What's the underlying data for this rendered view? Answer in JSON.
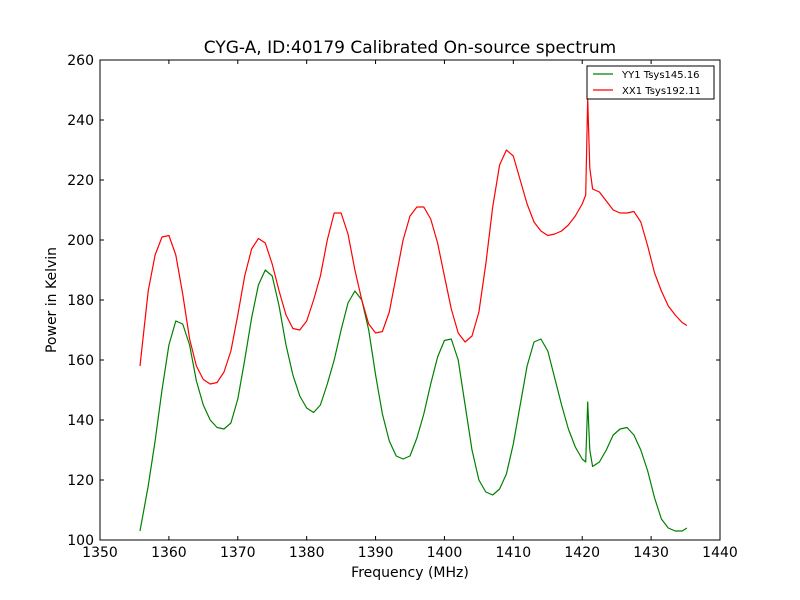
{
  "chart_data": {
    "type": "line",
    "title": "CYG-A, ID:40179 Calibrated On-source spectrum",
    "xlabel": "Frequency (MHz)",
    "ylabel": "Power in Kelvin",
    "xlim": [
      1350,
      1440
    ],
    "ylim": [
      100,
      260
    ],
    "xticks": [
      1350,
      1360,
      1370,
      1380,
      1390,
      1400,
      1410,
      1420,
      1430,
      1440
    ],
    "yticks": [
      100,
      120,
      140,
      160,
      180,
      200,
      220,
      240,
      260
    ],
    "grid": false,
    "legend_position": "top-right",
    "series": [
      {
        "name": "YY1 Tsys145.16",
        "color": "#008000",
        "points": [
          [
            1355.8,
            103
          ],
          [
            1357.0,
            118
          ],
          [
            1358.0,
            133
          ],
          [
            1359.0,
            150
          ],
          [
            1360.0,
            165
          ],
          [
            1361.0,
            173
          ],
          [
            1362.0,
            172
          ],
          [
            1363.0,
            165
          ],
          [
            1364.0,
            153
          ],
          [
            1365.0,
            145
          ],
          [
            1366.0,
            140
          ],
          [
            1367.0,
            137.5
          ],
          [
            1368.0,
            137
          ],
          [
            1369.0,
            139
          ],
          [
            1370.0,
            147
          ],
          [
            1371.0,
            160
          ],
          [
            1372.0,
            174
          ],
          [
            1373.0,
            185
          ],
          [
            1374.0,
            190
          ],
          [
            1375.0,
            188
          ],
          [
            1376.0,
            178
          ],
          [
            1377.0,
            165
          ],
          [
            1378.0,
            155
          ],
          [
            1379.0,
            148
          ],
          [
            1380.0,
            144
          ],
          [
            1381.0,
            142.5
          ],
          [
            1382.0,
            145
          ],
          [
            1383.0,
            152
          ],
          [
            1384.0,
            160
          ],
          [
            1385.0,
            170
          ],
          [
            1386.0,
            179
          ],
          [
            1387.0,
            183
          ],
          [
            1388.0,
            180
          ],
          [
            1389.0,
            170
          ],
          [
            1390.0,
            155
          ],
          [
            1391.0,
            142
          ],
          [
            1392.0,
            133
          ],
          [
            1393.0,
            128
          ],
          [
            1394.0,
            127
          ],
          [
            1395.0,
            128
          ],
          [
            1396.0,
            134
          ],
          [
            1397.0,
            142
          ],
          [
            1398.0,
            152
          ],
          [
            1399.0,
            161
          ],
          [
            1400.0,
            166.5
          ],
          [
            1401.0,
            167
          ],
          [
            1402.0,
            160
          ],
          [
            1403.0,
            145
          ],
          [
            1404.0,
            130
          ],
          [
            1405.0,
            120
          ],
          [
            1406.0,
            116
          ],
          [
            1407.0,
            115
          ],
          [
            1408.0,
            117
          ],
          [
            1409.0,
            122
          ],
          [
            1410.0,
            132
          ],
          [
            1411.0,
            145
          ],
          [
            1412.0,
            158
          ],
          [
            1413.0,
            166
          ],
          [
            1414.0,
            167
          ],
          [
            1415.0,
            163
          ],
          [
            1416.0,
            154
          ],
          [
            1417.0,
            145
          ],
          [
            1418.0,
            137
          ],
          [
            1419.0,
            131
          ],
          [
            1420.0,
            127
          ],
          [
            1420.5,
            126
          ],
          [
            1420.8,
            146
          ],
          [
            1421.1,
            130
          ],
          [
            1421.5,
            124.5
          ],
          [
            1422.5,
            126
          ],
          [
            1423.5,
            130
          ],
          [
            1424.5,
            135
          ],
          [
            1425.5,
            137
          ],
          [
            1426.5,
            137.5
          ],
          [
            1427.5,
            135
          ],
          [
            1428.5,
            130
          ],
          [
            1429.5,
            123
          ],
          [
            1430.5,
            114
          ],
          [
            1431.5,
            107
          ],
          [
            1432.5,
            104
          ],
          [
            1433.5,
            103
          ],
          [
            1434.5,
            103
          ],
          [
            1435.2,
            104
          ]
        ]
      },
      {
        "name": "XX1 Tsys192.11",
        "color": "#ff0000",
        "points": [
          [
            1355.8,
            158
          ],
          [
            1357.0,
            183
          ],
          [
            1358.0,
            195
          ],
          [
            1359.0,
            201
          ],
          [
            1360.0,
            201.5
          ],
          [
            1361.0,
            195
          ],
          [
            1362.0,
            182
          ],
          [
            1363.0,
            167
          ],
          [
            1364.0,
            158
          ],
          [
            1365.0,
            153.5
          ],
          [
            1366.0,
            152
          ],
          [
            1367.0,
            152.5
          ],
          [
            1368.0,
            156
          ],
          [
            1369.0,
            163
          ],
          [
            1370.0,
            175
          ],
          [
            1371.0,
            188
          ],
          [
            1372.0,
            197
          ],
          [
            1373.0,
            200.5
          ],
          [
            1374.0,
            199
          ],
          [
            1375.0,
            192
          ],
          [
            1376.0,
            183
          ],
          [
            1377.0,
            175
          ],
          [
            1378.0,
            170.5
          ],
          [
            1379.0,
            170
          ],
          [
            1380.0,
            173
          ],
          [
            1381.0,
            180
          ],
          [
            1382.0,
            188
          ],
          [
            1383.0,
            200
          ],
          [
            1384.0,
            209
          ],
          [
            1385.0,
            209
          ],
          [
            1386.0,
            202
          ],
          [
            1387.0,
            190
          ],
          [
            1388.0,
            180
          ],
          [
            1389.0,
            172
          ],
          [
            1390.0,
            169
          ],
          [
            1391.0,
            169.5
          ],
          [
            1392.0,
            176
          ],
          [
            1393.0,
            188
          ],
          [
            1394.0,
            200
          ],
          [
            1395.0,
            208
          ],
          [
            1396.0,
            211
          ],
          [
            1397.0,
            211
          ],
          [
            1398.0,
            207
          ],
          [
            1399.0,
            199
          ],
          [
            1400.0,
            188
          ],
          [
            1401.0,
            177
          ],
          [
            1402.0,
            169
          ],
          [
            1403.0,
            166
          ],
          [
            1404.0,
            168
          ],
          [
            1405.0,
            176
          ],
          [
            1406.0,
            192
          ],
          [
            1407.0,
            211
          ],
          [
            1408.0,
            225
          ],
          [
            1409.0,
            230
          ],
          [
            1410.0,
            228
          ],
          [
            1411.0,
            220
          ],
          [
            1412.0,
            212
          ],
          [
            1413.0,
            206
          ],
          [
            1414.0,
            203
          ],
          [
            1415.0,
            201.5
          ],
          [
            1416.0,
            202
          ],
          [
            1417.0,
            203
          ],
          [
            1418.0,
            205
          ],
          [
            1419.0,
            208
          ],
          [
            1420.0,
            212
          ],
          [
            1420.5,
            215
          ],
          [
            1420.8,
            247
          ],
          [
            1421.1,
            224
          ],
          [
            1421.5,
            217
          ],
          [
            1422.5,
            216
          ],
          [
            1423.5,
            213
          ],
          [
            1424.5,
            210
          ],
          [
            1425.5,
            209
          ],
          [
            1426.5,
            209
          ],
          [
            1427.5,
            209.5
          ],
          [
            1428.5,
            206
          ],
          [
            1429.5,
            198
          ],
          [
            1430.5,
            189
          ],
          [
            1431.5,
            183
          ],
          [
            1432.5,
            178
          ],
          [
            1433.5,
            175
          ],
          [
            1434.5,
            172.5
          ],
          [
            1435.2,
            171.5
          ]
        ]
      }
    ]
  }
}
